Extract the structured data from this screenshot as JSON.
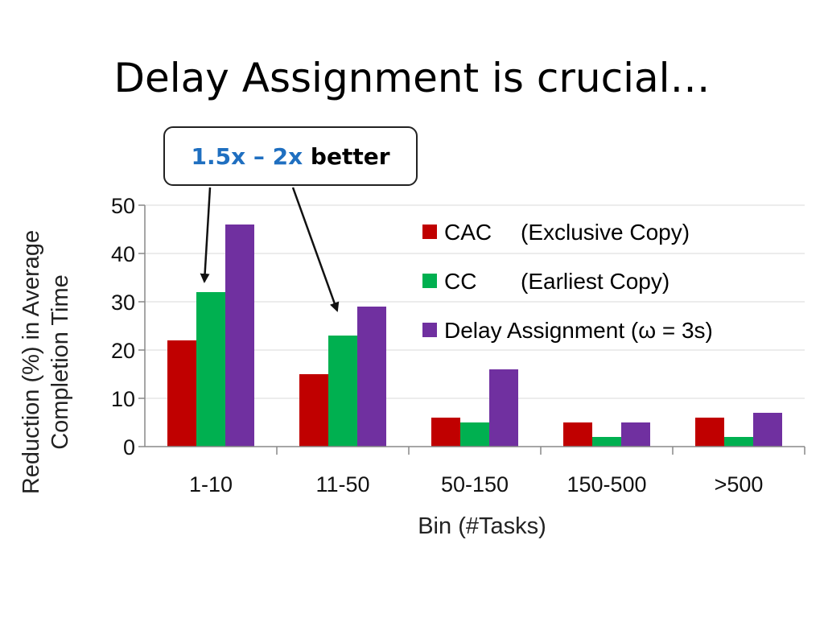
{
  "slide": {
    "title": "Delay Assignment is crucial…"
  },
  "callout": {
    "highlight": "1.5x – 2x",
    "text": "better"
  },
  "chart_data": {
    "type": "bar",
    "categories": [
      "1-10",
      "11-50",
      "50-150",
      "150-500",
      ">500"
    ],
    "series": [
      {
        "name": "CAC",
        "note": "(Exclusive Copy)",
        "color": "#c00000",
        "values": [
          22,
          15,
          6,
          5,
          6
        ]
      },
      {
        "name": "CC",
        "note": "(Earliest Copy)",
        "color": "#00b050",
        "values": [
          32,
          23,
          5,
          2,
          2
        ]
      },
      {
        "name": "Delay Assignment (ω = 3s)",
        "note": "",
        "color": "#7030a0",
        "values": [
          46,
          29,
          16,
          5,
          7
        ]
      }
    ],
    "xlabel": "Bin (#Tasks)",
    "ylabel_line1": "Reduction (%) in Average",
    "ylabel_line2": "Completion Time",
    "ylim": [
      0,
      50
    ],
    "yticks": [
      0,
      10,
      20,
      30,
      40,
      50
    ],
    "grid": true,
    "legend_position": "top-right"
  }
}
